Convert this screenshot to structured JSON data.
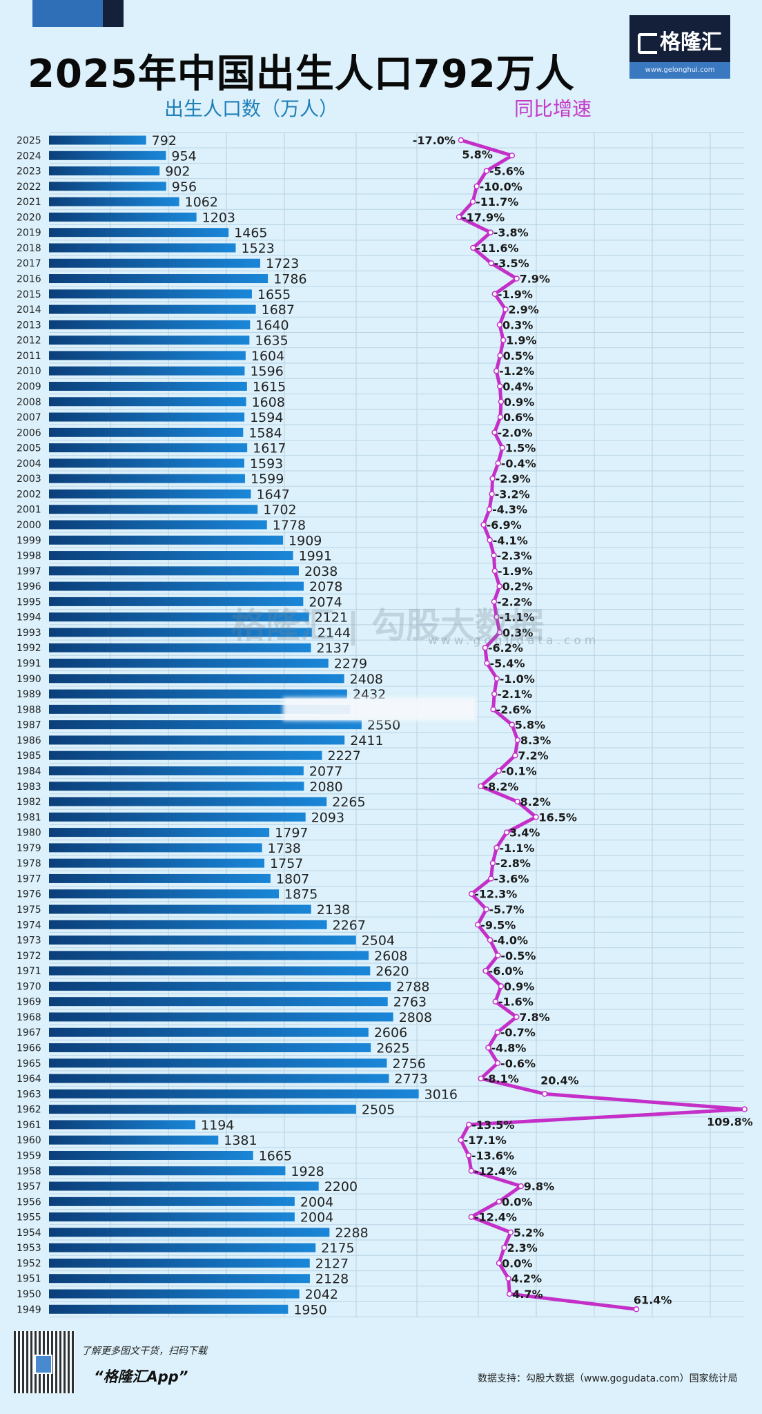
{
  "title": "2025年中国出生人口792万人",
  "logo": {
    "name": "格隆汇",
    "url": "www.gelonghui.com"
  },
  "watermark": {
    "text": "格隆汇 | 勾股大数据",
    "url": "www.gogudata.com"
  },
  "footer": {
    "scan_text": "了解更多图文干货，扫码下载",
    "app_name": "“格隆汇App”",
    "source": "数据支持：勾股大数据（www.gogudata.com）国家统计局"
  },
  "colors": {
    "bar_dark": "#0b3f7a",
    "bar_light": "#1a86d8",
    "line": "#c42fc8",
    "background": "#dcf1fb"
  },
  "chart_data": {
    "type": "bar+line",
    "orientation": "horizontal",
    "grid": true,
    "series": [
      {
        "name": "出生人口数（万人）",
        "type": "bar",
        "values": [
          792,
          954,
          902,
          956,
          1062,
          1203,
          1465,
          1523,
          1723,
          1786,
          1655,
          1687,
          1640,
          1635,
          1604,
          1596,
          1615,
          1608,
          1594,
          1584,
          1617,
          1593,
          1599,
          1647,
          1702,
          1778,
          1909,
          1991,
          2038,
          2078,
          2074,
          2121,
          2144,
          2137,
          2279,
          2408,
          2432,
          null,
          2550,
          2411,
          2227,
          2077,
          2080,
          2265,
          2093,
          1797,
          1738,
          1757,
          1807,
          1875,
          2138,
          2267,
          2504,
          2608,
          2620,
          2788,
          2763,
          2808,
          2606,
          2625,
          2756,
          2773,
          3016,
          2505,
          1194,
          1381,
          1665,
          1928,
          2200,
          2004,
          2004,
          2288,
          2175,
          2127,
          2128,
          2042,
          1950
        ]
      },
      {
        "name": "同比增速",
        "type": "line",
        "unit": "%",
        "values": [
          -17.0,
          5.8,
          -5.6,
          -10.0,
          -11.7,
          -17.9,
          -3.8,
          -11.6,
          -3.5,
          7.9,
          -1.9,
          2.9,
          0.3,
          1.9,
          0.5,
          -1.2,
          0.4,
          0.9,
          0.6,
          -2.0,
          1.5,
          -0.4,
          -2.9,
          -3.2,
          -4.3,
          -6.9,
          -4.1,
          -2.3,
          -1.9,
          0.2,
          -2.2,
          -1.1,
          0.3,
          -6.2,
          -5.4,
          -1.0,
          -2.1,
          -2.6,
          5.8,
          8.3,
          7.2,
          -0.1,
          -8.2,
          8.2,
          16.5,
          3.4,
          -1.1,
          -2.8,
          -3.6,
          -12.3,
          -5.7,
          -9.5,
          -4.0,
          -0.5,
          -6.0,
          0.9,
          -1.6,
          7.8,
          -0.7,
          -4.8,
          -0.6,
          -8.1,
          20.4,
          109.8,
          -13.5,
          -17.1,
          -13.6,
          -12.4,
          9.8,
          0.0,
          -12.4,
          5.2,
          2.3,
          0.0,
          4.2,
          4.7,
          61.4
        ]
      }
    ],
    "categories": [
      2025,
      2024,
      2023,
      2022,
      2021,
      2020,
      2019,
      2018,
      2017,
      2016,
      2015,
      2014,
      2013,
      2012,
      2011,
      2010,
      2009,
      2008,
      2007,
      2006,
      2005,
      2004,
      2003,
      2002,
      2001,
      2000,
      1999,
      1998,
      1997,
      1996,
      1995,
      1994,
      1993,
      1992,
      1991,
      1990,
      1989,
      1988,
      1987,
      1986,
      1985,
      1984,
      1983,
      1982,
      1981,
      1980,
      1979,
      1978,
      1977,
      1976,
      1975,
      1974,
      1973,
      1972,
      1971,
      1970,
      1969,
      1968,
      1967,
      1966,
      1965,
      1964,
      1963,
      1962,
      1961,
      1960,
      1959,
      1958,
      1957,
      1956,
      1955,
      1954,
      1953,
      1952,
      1951,
      1950,
      1949
    ]
  }
}
